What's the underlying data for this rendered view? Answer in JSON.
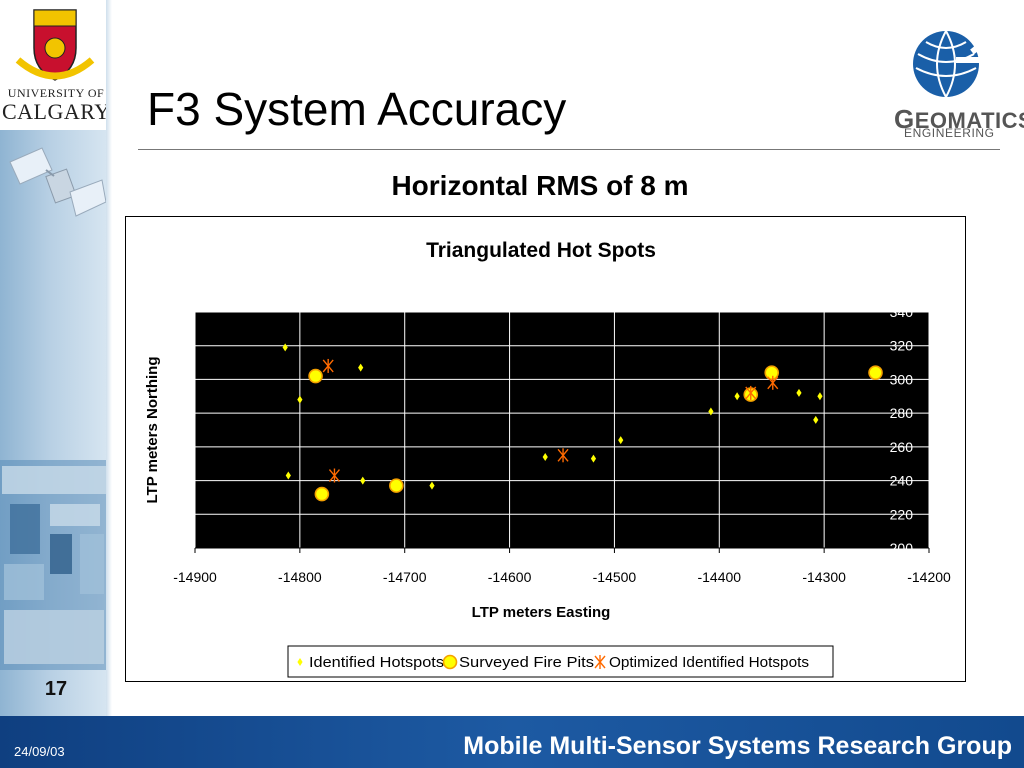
{
  "slide": {
    "title": "F3 System Accuracy",
    "subtitle": "Horizontal RMS of 8 m",
    "page_number": "17",
    "footer_date": "24/09/03",
    "footer_group": "Mobile Multi-Sensor Systems Research Group"
  },
  "logos": {
    "university_line1": "UNIVERSITY OF",
    "university_line2": "CALGARY",
    "geomatics_first": "G",
    "geomatics_rest": "EOMATICS",
    "geomatics_sub": "ENGINEERING"
  },
  "colors": {
    "plot_background": "#000000",
    "identified": "#ffff00",
    "surveyed": "#ffff00",
    "optimized": "#ff6a00",
    "footer": "#1d5aa3"
  },
  "chart_data": {
    "type": "scatter",
    "title": "Triangulated Hot Spots",
    "xlabel": "LTP meters Easting",
    "ylabel": "LTP meters Northing",
    "xlim": [
      -14900,
      -14200
    ],
    "ylim": [
      200,
      340
    ],
    "x_ticks": [
      -14900,
      -14800,
      -14700,
      -14600,
      -14500,
      -14400,
      -14300,
      -14200
    ],
    "y_ticks": [
      200,
      220,
      240,
      260,
      280,
      300,
      320,
      340
    ],
    "y_axis_side": "right",
    "grid": true,
    "legend_position": "bottom",
    "series": [
      {
        "name": "Identified Hotspots",
        "marker": "diamond",
        "points": [
          [
            -14814,
            319
          ],
          [
            -14800,
            288
          ],
          [
            -14742,
            307
          ],
          [
            -14811,
            243
          ],
          [
            -14740,
            240
          ],
          [
            -14674,
            237
          ],
          [
            -14566,
            254
          ],
          [
            -14520,
            253
          ],
          [
            -14494,
            264
          ],
          [
            -14408,
            281
          ],
          [
            -14383,
            290
          ],
          [
            -14324,
            292
          ],
          [
            -14304,
            290
          ],
          [
            -14308,
            276
          ]
        ]
      },
      {
        "name": "Surveyed Fire Pits",
        "marker": "circle",
        "points": [
          [
            -14785,
            302
          ],
          [
            -14779,
            232
          ],
          [
            -14708,
            237
          ],
          [
            -14370,
            291
          ],
          [
            -14350,
            304
          ],
          [
            -14251,
            304
          ]
        ]
      },
      {
        "name": "Optimized Identified Hotspots",
        "marker": "asterisk",
        "points": [
          [
            -14773,
            308
          ],
          [
            -14767,
            243
          ],
          [
            -14549,
            255
          ],
          [
            -14370,
            292
          ],
          [
            -14349,
            298
          ]
        ]
      }
    ]
  }
}
